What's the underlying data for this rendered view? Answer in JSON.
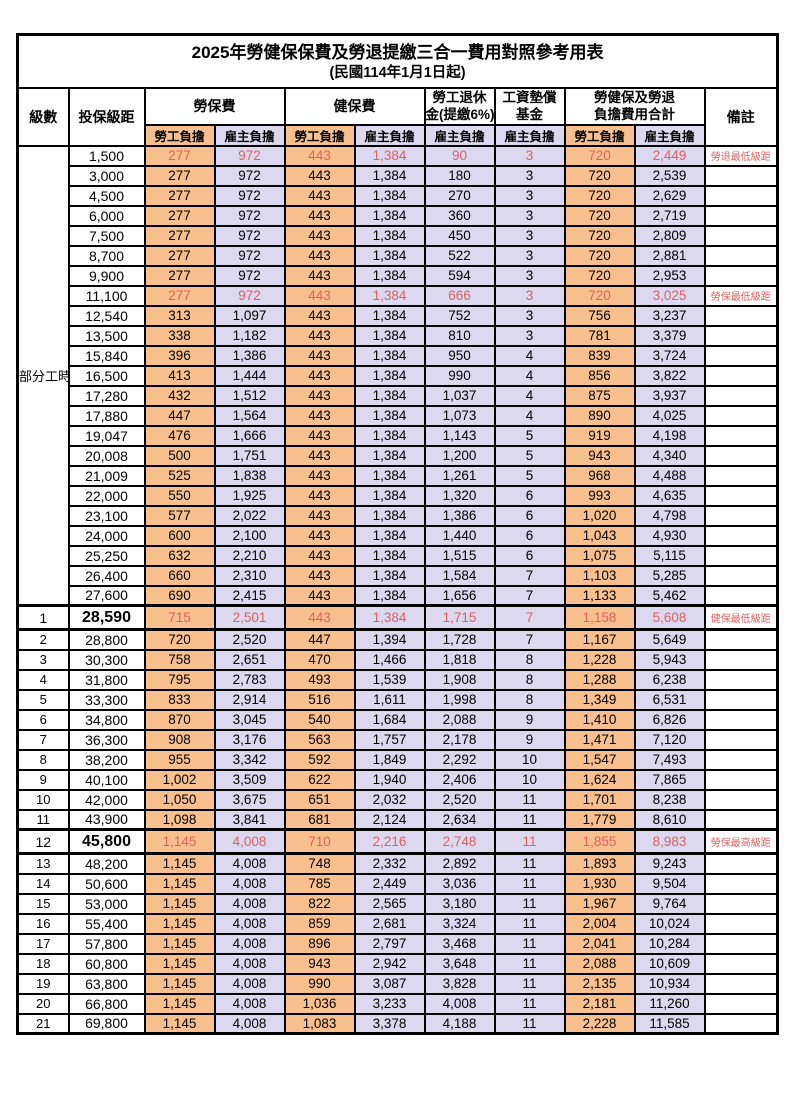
{
  "title": "2025年勞健保保費及勞退提繳三合一費用對照參考用表",
  "subtitle": "(民國114年1月1日起)",
  "header": {
    "level": "級數",
    "salary": "投保級距",
    "labor": "勞保費",
    "health": "健保費",
    "pension_line1": "勞工退休",
    "pension_line2": "金(提繳6%)",
    "wage_fund_line1": "工資墊償",
    "wage_fund_line2": "基金",
    "total_line1": "勞健保及勞退",
    "total_line2": "負擔費用合計",
    "note": "備註",
    "employee": "勞工負擔",
    "employer": "雇主負擔"
  },
  "part_time_label": "部分工時",
  "part_time_rowspan": 23,
  "colors": {
    "employee_bg": "#f9c08f",
    "employer_bg": "#dcd8ef",
    "highlight_red": "#e06060"
  },
  "row_fields": [
    "level",
    "salary",
    "labor_employee",
    "labor_employer",
    "health_employee",
    "health_employer",
    "pension_employer",
    "wage_fund_employer",
    "total_employee",
    "total_employer",
    "note",
    "flags"
  ],
  "rows": [
    [
      "",
      "1,500",
      "277",
      "972",
      "443",
      "1,384",
      "90",
      "3",
      "720",
      "2,449",
      "勞退最低級距",
      "r"
    ],
    [
      "",
      "3,000",
      "277",
      "972",
      "443",
      "1,384",
      "180",
      "3",
      "720",
      "2,539",
      "",
      ""
    ],
    [
      "",
      "4,500",
      "277",
      "972",
      "443",
      "1,384",
      "270",
      "3",
      "720",
      "2,629",
      "",
      ""
    ],
    [
      "",
      "6,000",
      "277",
      "972",
      "443",
      "1,384",
      "360",
      "3",
      "720",
      "2,719",
      "",
      ""
    ],
    [
      "",
      "7,500",
      "277",
      "972",
      "443",
      "1,384",
      "450",
      "3",
      "720",
      "2,809",
      "",
      ""
    ],
    [
      "",
      "8,700",
      "277",
      "972",
      "443",
      "1,384",
      "522",
      "3",
      "720",
      "2,881",
      "",
      ""
    ],
    [
      "",
      "9,900",
      "277",
      "972",
      "443",
      "1,384",
      "594",
      "3",
      "720",
      "2,953",
      "",
      ""
    ],
    [
      "",
      "11,100",
      "277",
      "972",
      "443",
      "1,384",
      "666",
      "3",
      "720",
      "3,025",
      "勞保最低級距",
      "r"
    ],
    [
      "",
      "12,540",
      "313",
      "1,097",
      "443",
      "1,384",
      "752",
      "3",
      "756",
      "3,237",
      "",
      ""
    ],
    [
      "",
      "13,500",
      "338",
      "1,182",
      "443",
      "1,384",
      "810",
      "3",
      "781",
      "3,379",
      "",
      ""
    ],
    [
      "",
      "15,840",
      "396",
      "1,386",
      "443",
      "1,384",
      "950",
      "4",
      "839",
      "3,724",
      "",
      ""
    ],
    [
      "",
      "16,500",
      "413",
      "1,444",
      "443",
      "1,384",
      "990",
      "4",
      "856",
      "3,822",
      "",
      ""
    ],
    [
      "",
      "17,280",
      "432",
      "1,512",
      "443",
      "1,384",
      "1,037",
      "4",
      "875",
      "3,937",
      "",
      ""
    ],
    [
      "",
      "17,880",
      "447",
      "1,564",
      "443",
      "1,384",
      "1,073",
      "4",
      "890",
      "4,025",
      "",
      ""
    ],
    [
      "",
      "19,047",
      "476",
      "1,666",
      "443",
      "1,384",
      "1,143",
      "5",
      "919",
      "4,198",
      "",
      ""
    ],
    [
      "",
      "20,008",
      "500",
      "1,751",
      "443",
      "1,384",
      "1,200",
      "5",
      "943",
      "4,340",
      "",
      ""
    ],
    [
      "",
      "21,009",
      "525",
      "1,838",
      "443",
      "1,384",
      "1,261",
      "5",
      "968",
      "4,488",
      "",
      ""
    ],
    [
      "",
      "22,000",
      "550",
      "1,925",
      "443",
      "1,384",
      "1,320",
      "6",
      "993",
      "4,635",
      "",
      ""
    ],
    [
      "",
      "23,100",
      "577",
      "2,022",
      "443",
      "1,384",
      "1,386",
      "6",
      "1,020",
      "4,798",
      "",
      ""
    ],
    [
      "",
      "24,000",
      "600",
      "2,100",
      "443",
      "1,384",
      "1,440",
      "6",
      "1,043",
      "4,930",
      "",
      ""
    ],
    [
      "",
      "25,250",
      "632",
      "2,210",
      "443",
      "1,384",
      "1,515",
      "6",
      "1,075",
      "5,115",
      "",
      ""
    ],
    [
      "",
      "26,400",
      "660",
      "2,310",
      "443",
      "1,384",
      "1,584",
      "7",
      "1,103",
      "5,285",
      "",
      ""
    ],
    [
      "",
      "27,600",
      "690",
      "2,415",
      "443",
      "1,384",
      "1,656",
      "7",
      "1,133",
      "5,462",
      "",
      ""
    ],
    [
      "1",
      "28,590",
      "715",
      "2,501",
      "443",
      "1,384",
      "1,715",
      "7",
      "1,158",
      "5,608",
      "健保最低級距",
      "rb"
    ],
    [
      "2",
      "28,800",
      "720",
      "2,520",
      "447",
      "1,394",
      "1,728",
      "7",
      "1,167",
      "5,649",
      "",
      ""
    ],
    [
      "3",
      "30,300",
      "758",
      "2,651",
      "470",
      "1,466",
      "1,818",
      "8",
      "1,228",
      "5,943",
      "",
      ""
    ],
    [
      "4",
      "31,800",
      "795",
      "2,783",
      "493",
      "1,539",
      "1,908",
      "8",
      "1,288",
      "6,238",
      "",
      ""
    ],
    [
      "5",
      "33,300",
      "833",
      "2,914",
      "516",
      "1,611",
      "1,998",
      "8",
      "1,349",
      "6,531",
      "",
      ""
    ],
    [
      "6",
      "34,800",
      "870",
      "3,045",
      "540",
      "1,684",
      "2,088",
      "9",
      "1,410",
      "6,826",
      "",
      ""
    ],
    [
      "7",
      "36,300",
      "908",
      "3,176",
      "563",
      "1,757",
      "2,178",
      "9",
      "1,471",
      "7,120",
      "",
      ""
    ],
    [
      "8",
      "38,200",
      "955",
      "3,342",
      "592",
      "1,849",
      "2,292",
      "10",
      "1,547",
      "7,493",
      "",
      ""
    ],
    [
      "9",
      "40,100",
      "1,002",
      "3,509",
      "622",
      "1,940",
      "2,406",
      "10",
      "1,624",
      "7,865",
      "",
      ""
    ],
    [
      "10",
      "42,000",
      "1,050",
      "3,675",
      "651",
      "2,032",
      "2,520",
      "11",
      "1,701",
      "8,238",
      "",
      ""
    ],
    [
      "11",
      "43,900",
      "1,098",
      "3,841",
      "681",
      "2,124",
      "2,634",
      "11",
      "1,779",
      "8,610",
      "",
      ""
    ],
    [
      "12",
      "45,800",
      "1,145",
      "4,008",
      "710",
      "2,216",
      "2,748",
      "11",
      "1,855",
      "8,983",
      "勞保最高級距",
      "rb"
    ],
    [
      "13",
      "48,200",
      "1,145",
      "4,008",
      "748",
      "2,332",
      "2,892",
      "11",
      "1,893",
      "9,243",
      "",
      ""
    ],
    [
      "14",
      "50,600",
      "1,145",
      "4,008",
      "785",
      "2,449",
      "3,036",
      "11",
      "1,930",
      "9,504",
      "",
      ""
    ],
    [
      "15",
      "53,000",
      "1,145",
      "4,008",
      "822",
      "2,565",
      "3,180",
      "11",
      "1,967",
      "9,764",
      "",
      ""
    ],
    [
      "16",
      "55,400",
      "1,145",
      "4,008",
      "859",
      "2,681",
      "3,324",
      "11",
      "2,004",
      "10,024",
      "",
      ""
    ],
    [
      "17",
      "57,800",
      "1,145",
      "4,008",
      "896",
      "2,797",
      "3,468",
      "11",
      "2,041",
      "10,284",
      "",
      ""
    ],
    [
      "18",
      "60,800",
      "1,145",
      "4,008",
      "943",
      "2,942",
      "3,648",
      "11",
      "2,088",
      "10,609",
      "",
      ""
    ],
    [
      "19",
      "63,800",
      "1,145",
      "4,008",
      "990",
      "3,087",
      "3,828",
      "11",
      "2,135",
      "10,934",
      "",
      ""
    ],
    [
      "20",
      "66,800",
      "1,145",
      "4,008",
      "1,036",
      "3,233",
      "4,008",
      "11",
      "2,181",
      "11,260",
      "",
      ""
    ],
    [
      "21",
      "69,800",
      "1,145",
      "4,008",
      "1,083",
      "3,378",
      "4,188",
      "11",
      "2,228",
      "11,585",
      "",
      ""
    ]
  ]
}
